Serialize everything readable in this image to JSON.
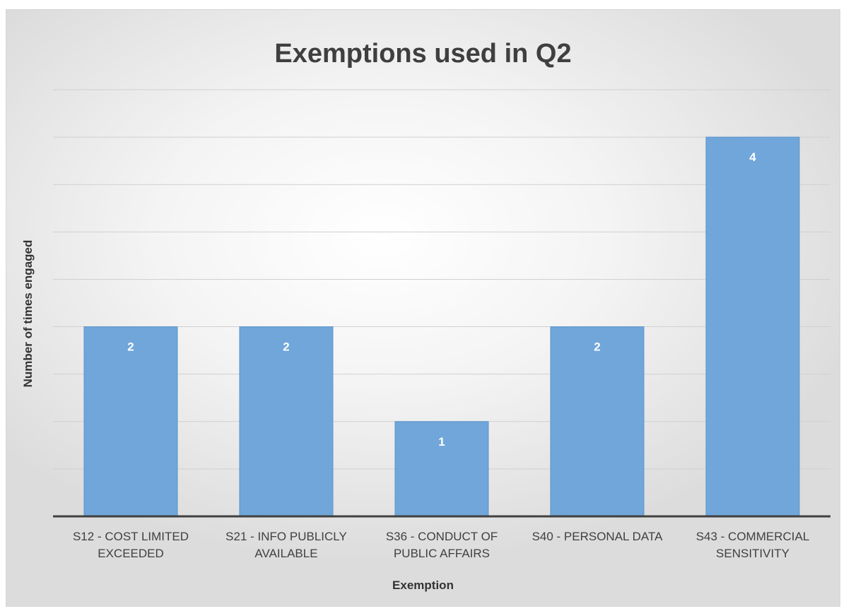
{
  "chart_data": {
    "type": "bar",
    "title": "Exemptions used in Q2",
    "xlabel": "Exemption",
    "ylabel": "Number of times engaged",
    "categories": [
      [
        "S12 - COST LIMITED",
        "EXCEEDED"
      ],
      [
        "S21 - INFO PUBLICLY",
        "AVAILABLE"
      ],
      [
        "S36 - CONDUCT OF",
        "PUBLIC AFFAIRS"
      ],
      [
        "S40 - PERSONAL DATA"
      ],
      [
        "S43 - COMMERCIAL",
        "SENSITIVITY"
      ]
    ],
    "values": [
      2,
      2,
      1,
      2,
      4
    ],
    "data_labels": [
      "2",
      "2",
      "1",
      "2",
      "4"
    ],
    "ylim": [
      0,
      4.5
    ],
    "grid_step": 0.5,
    "grid": true,
    "y_tick_labels_shown": false,
    "legend": "none",
    "colors": {
      "bar": "#70a6d9",
      "bar_edge": "#5b95cc",
      "grid": "#d0d0d0",
      "axis": "#404040",
      "data_label": "#ffffff"
    }
  }
}
